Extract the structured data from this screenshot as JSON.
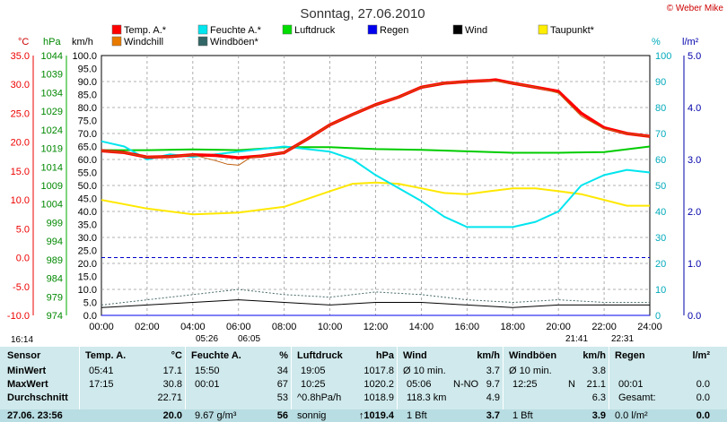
{
  "title": "Sonntag, 27.06.2010",
  "credit": "© Weber Mike",
  "colors": {
    "temp": "#ff0000",
    "windchill": "#e87a00",
    "feuchte": "#00e5ee",
    "luftdruck": "#00dd00",
    "regen": "#0000ee",
    "wind": "#000000",
    "taupunkt": "#ffee00",
    "windboeen": "#336666"
  },
  "axis_units": {
    "temp": "°C",
    "pressure": "hPa",
    "wind": "km/h",
    "humidity": "%",
    "rain": "l/m²"
  },
  "legend": [
    {
      "label": "Temp. A.*",
      "color": "#ff0000"
    },
    {
      "label": "Windchill",
      "color": "#e87a00"
    },
    {
      "label": "Feuchte A.*",
      "color": "#00e5ee"
    },
    {
      "label": "Windböen*",
      "color": "#336666"
    },
    {
      "label": "Luftdruck",
      "color": "#00dd00"
    },
    {
      "label": "Regen",
      "color": "#0000ee"
    },
    {
      "label": "Wind",
      "color": "#000000"
    },
    {
      "label": "Taupunkt*",
      "color": "#ffee00"
    }
  ],
  "chart_data": {
    "type": "line",
    "title": "Sonntag, 27.06.2010",
    "x_ticks": [
      "00:00",
      "02:00",
      "04:00",
      "06:00",
      "08:00",
      "10:00",
      "12:00",
      "14:00",
      "16:00",
      "18:00",
      "20:00",
      "22:00",
      "24:00"
    ],
    "xlim": [
      0,
      24
    ],
    "ylim_wind_kmh": [
      0,
      100
    ],
    "ylim_temp_c": [
      -10,
      35
    ],
    "ylim_pressure_hpa": [
      974,
      1044
    ],
    "ylim_humidity_pct": [
      0,
      100
    ],
    "ylim_rain_lm2": [
      0,
      5
    ],
    "temp_ticks": [
      "35.0",
      "30.0",
      "25.0",
      "20.0",
      "15.0",
      "10.0",
      "5.0",
      "0.0",
      "-5.0",
      "-10.0"
    ],
    "pressure_ticks": [
      "1044",
      "1039",
      "1034",
      "1029",
      "1024",
      "1019",
      "1014",
      "1009",
      "1004",
      "999",
      "994",
      "989",
      "984",
      "979",
      "974"
    ],
    "wind_ticks": [
      "100.0",
      "95.0",
      "90.0",
      "85.0",
      "80.0",
      "75.0",
      "70.0",
      "65.0",
      "60.0",
      "55.0",
      "50.0",
      "45.0",
      "40.0",
      "35.0",
      "30.0",
      "25.0",
      "20.0",
      "15.0",
      "10.0",
      "5.0",
      "0.0"
    ],
    "humidity_ticks": [
      "100",
      "90",
      "80",
      "70",
      "60",
      "50",
      "40",
      "30",
      "20",
      "10",
      "0"
    ],
    "rain_ticks": [
      "5.0",
      "4.0",
      "3.0",
      "2.0",
      "1.0",
      "0.0"
    ],
    "grid": true,
    "series": [
      {
        "name": "Temp. A.*",
        "unit": "°C",
        "x": [
          0,
          1,
          2,
          3,
          4,
          5,
          6,
          7,
          8,
          9,
          10,
          11,
          12,
          13,
          14,
          15,
          16,
          17,
          17.25,
          18,
          19,
          20,
          21,
          22,
          23,
          24
        ],
        "values": [
          18.5,
          18.2,
          17.4,
          17.5,
          17.8,
          17.7,
          17.3,
          17.6,
          18.2,
          20.5,
          23,
          24.8,
          26.5,
          27.8,
          29.5,
          30.2,
          30.5,
          30.7,
          30.8,
          30.2,
          29.5,
          28.8,
          25,
          22.5,
          21.5,
          21
        ]
      },
      {
        "name": "Windchill",
        "unit": "°C",
        "x": [
          0,
          1,
          2,
          3,
          4,
          5,
          5.5,
          6,
          6.5,
          7,
          8,
          9,
          10,
          11,
          12,
          13,
          14,
          15,
          16,
          17,
          18,
          19,
          20,
          21,
          22,
          23,
          24
        ],
        "values": [
          18.5,
          18.2,
          17.4,
          17.5,
          17.8,
          16.8,
          16.2,
          16.0,
          17.3,
          17.6,
          18.2,
          20.5,
          23,
          24.8,
          26.5,
          27.8,
          29.5,
          30.2,
          30.5,
          30.7,
          30.2,
          29.5,
          28.5,
          24.5,
          22.3,
          21.5,
          21
        ]
      },
      {
        "name": "Feuchte A.*",
        "unit": "%",
        "x": [
          0,
          1,
          2,
          3,
          4,
          5,
          6,
          7,
          8,
          9,
          10,
          11,
          12,
          13,
          14,
          15,
          16,
          17,
          18,
          19,
          20,
          21,
          22,
          23,
          24
        ],
        "values": [
          67,
          65,
          60,
          62,
          61,
          62,
          63,
          64,
          65,
          64,
          63,
          60,
          54,
          49,
          44,
          38,
          34,
          34,
          34,
          36,
          40,
          50,
          54,
          56,
          55
        ]
      },
      {
        "name": "Luftdruck",
        "unit": "hPa",
        "x": [
          0,
          2,
          4,
          6,
          8,
          10,
          12,
          14,
          16,
          18,
          20,
          22,
          24
        ],
        "values": [
          1018.5,
          1018.5,
          1018.7,
          1018.5,
          1019.3,
          1019.3,
          1018.8,
          1018.6,
          1018.2,
          1017.8,
          1017.8,
          1018.0,
          1019.5
        ]
      },
      {
        "name": "Taupunkt*",
        "unit": "°C",
        "x": [
          0,
          2,
          4,
          6,
          8,
          10,
          11,
          12,
          13,
          14,
          15,
          16,
          17,
          18,
          19,
          20,
          21,
          22,
          23,
          24
        ],
        "values": [
          10,
          8.5,
          7.5,
          7.8,
          8.8,
          11.5,
          12.8,
          13,
          12.8,
          12,
          11.2,
          11,
          11.5,
          12,
          12,
          11.5,
          11,
          10,
          9,
          9
        ]
      },
      {
        "name": "Wind",
        "unit": "km/h",
        "x": [
          0,
          2,
          4,
          6,
          8,
          10,
          12,
          14,
          16,
          18,
          20,
          22,
          24
        ],
        "values": [
          3,
          4,
          5,
          6,
          5,
          4,
          5,
          5,
          4,
          3,
          4,
          4,
          4
        ]
      },
      {
        "name": "Windböen*",
        "unit": "km/h",
        "x": [
          0,
          2,
          4,
          6,
          8,
          10,
          12,
          14,
          16,
          18,
          20,
          22,
          24
        ],
        "values": [
          4,
          6,
          8,
          10,
          8,
          7,
          9,
          8,
          6,
          5,
          6,
          5,
          5
        ]
      },
      {
        "name": "Regen",
        "unit": "l/m²",
        "x": [
          0,
          24
        ],
        "values": [
          0,
          0
        ]
      }
    ],
    "markers": [
      {
        "label": "16:14",
        "x": 0.0
      },
      {
        "label": "05:26",
        "x": 5.43
      },
      {
        "label": "06:05",
        "x": 6.08
      },
      {
        "label": "21:41",
        "x": 21.68
      },
      {
        "label": "22:31",
        "x": 22.52
      }
    ]
  },
  "table": {
    "labels": {
      "sensor": "Sensor",
      "min": "MinWert",
      "max": "MaxWert",
      "avg": "Durchschnitt",
      "now": "27.06. 23:56"
    },
    "temp": {
      "header": "Temp. A.",
      "unit": "°C",
      "min_time": "05:41",
      "min": "17.1",
      "max_time": "17:15",
      "max": "30.8",
      "avg": "22.71",
      "now": "20.0"
    },
    "feuchte": {
      "header": "Feuchte A.",
      "unit": "%",
      "min_time": "15:50",
      "min": "34",
      "max_time": "00:01",
      "max": "67",
      "avg": "53",
      "now_extra": "9.67 g/m³",
      "now": "56"
    },
    "druck": {
      "header": "Luftdruck",
      "unit": "hPa",
      "min_time": "19:05",
      "min": "1017.8",
      "max_time": "10:25",
      "max": "1020.2",
      "avg_label": "^0.8hPa/h",
      "avg": "1018.9",
      "now_label": "sonnig",
      "now": "↑1019.4"
    },
    "wind": {
      "header": "Wind",
      "unit": "km/h",
      "r1_label": "Ø 10 min.",
      "r1": "3.7",
      "r2_label": "05:06",
      "r2_dir": "N-NO",
      "r2": "9.7",
      "r3_label": "118.3 km",
      "r3": "4.9",
      "r4_label": "1 Bft",
      "r4": "3.7"
    },
    "boeen": {
      "header": "Windböen",
      "unit": "km/h",
      "r1_label": "Ø 10 min.",
      "r1": "3.8",
      "r2_label": "12:25",
      "r2_dir": "N",
      "r2": "21.1",
      "r3": "6.3",
      "r4_label": "1 Bft",
      "r4": "3.9"
    },
    "regen": {
      "header": "Regen",
      "unit": "l/m²",
      "r2_label": "00:01",
      "r2": "0.0",
      "r3_label": "Gesamt:",
      "r3": "0.0",
      "r4_label": "0.0 l/m²",
      "r4": "0.0"
    }
  }
}
